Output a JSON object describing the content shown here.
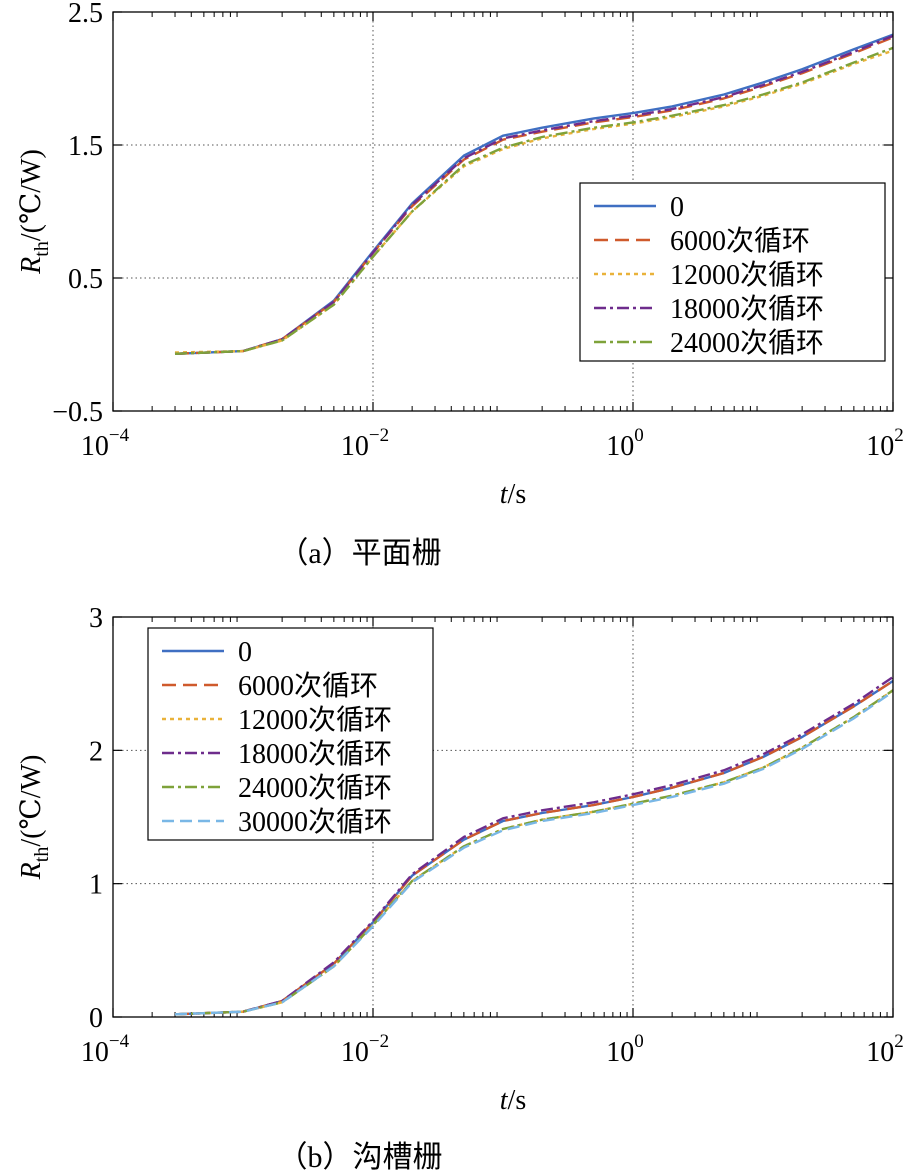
{
  "captions": [
    "（a）平面栅",
    "（b）沟槽栅"
  ],
  "colors": {
    "s0": "#3f6fc2",
    "s6000": "#cf5a2c",
    "s12000": "#e9b23a",
    "s18000": "#6e2c8c",
    "s24000": "#7ea23a",
    "s30000": "#79b7e6"
  },
  "chart_data": [
    {
      "type": "line",
      "x_scale": "log",
      "xlim": [
        0.0001,
        100
      ],
      "ylim": [
        -0.5,
        2.5
      ],
      "grid": true,
      "legend_position": "center-right",
      "xlabel_var": "t",
      "xlabel_unit": "/s",
      "ylabel_var": "R",
      "ylabel_sub": "th",
      "ylabel_unit": "/(℃/W)",
      "x_ticks": [
        "10",
        "10",
        "10",
        "10"
      ],
      "x_tick_exps": [
        "−4",
        "−2",
        "0",
        "2"
      ],
      "y_ticks": [
        "2.5",
        "1.5",
        "0.5",
        "−0.5"
      ],
      "x": [
        0.0003,
        0.001,
        0.002,
        0.005,
        0.01,
        0.02,
        0.05,
        0.1,
        0.2,
        0.5,
        1,
        2,
        5,
        10,
        20,
        50,
        100
      ],
      "series": [
        {
          "name": "0",
          "color_key": "s0",
          "dash": "none",
          "values": [
            -0.07,
            -0.05,
            0.04,
            0.33,
            0.7,
            1.06,
            1.42,
            1.57,
            1.63,
            1.7,
            1.74,
            1.79,
            1.88,
            1.97,
            2.07,
            2.22,
            2.33
          ]
        },
        {
          "name": "6000次循环",
          "color_key": "s6000",
          "dash": "14,7",
          "values": [
            -0.07,
            -0.05,
            0.04,
            0.32,
            0.69,
            1.04,
            1.39,
            1.54,
            1.6,
            1.67,
            1.71,
            1.76,
            1.85,
            1.94,
            2.04,
            2.19,
            2.31
          ]
        },
        {
          "name": "12000次循环",
          "color_key": "s12000",
          "dash": "4,4",
          "values": [
            -0.06,
            -0.05,
            0.03,
            0.3,
            0.66,
            1.0,
            1.34,
            1.47,
            1.55,
            1.62,
            1.66,
            1.71,
            1.79,
            1.87,
            1.96,
            2.11,
            2.21
          ]
        },
        {
          "name": "18000次循环",
          "color_key": "s18000",
          "dash": "12,4,3,4",
          "values": [
            -0.07,
            -0.05,
            0.04,
            0.32,
            0.69,
            1.05,
            1.4,
            1.55,
            1.61,
            1.68,
            1.72,
            1.77,
            1.86,
            1.95,
            2.05,
            2.2,
            2.32
          ]
        },
        {
          "name": "24000次循环",
          "color_key": "s24000",
          "dash": "12,4,3,4",
          "values": [
            -0.07,
            -0.05,
            0.03,
            0.3,
            0.66,
            1.0,
            1.35,
            1.48,
            1.56,
            1.63,
            1.67,
            1.72,
            1.8,
            1.88,
            1.97,
            2.12,
            2.23
          ]
        }
      ]
    },
    {
      "type": "line",
      "x_scale": "log",
      "xlim": [
        0.0001,
        100
      ],
      "ylim": [
        0,
        3
      ],
      "grid": true,
      "legend_position": "top-left",
      "xlabel_var": "t",
      "xlabel_unit": "/s",
      "ylabel_var": "R",
      "ylabel_sub": "th",
      "ylabel_unit": "/(℃/W)",
      "x_ticks": [
        "10",
        "10",
        "10",
        "10"
      ],
      "x_tick_exps": [
        "−4",
        "−2",
        "0",
        "2"
      ],
      "y_ticks": [
        "3",
        "2",
        "1",
        "0"
      ],
      "x": [
        0.0003,
        0.001,
        0.002,
        0.005,
        0.01,
        0.02,
        0.05,
        0.1,
        0.2,
        0.5,
        1,
        2,
        5,
        10,
        20,
        50,
        100
      ],
      "series": [
        {
          "name": "0",
          "color_key": "s0",
          "dash": "none",
          "values": [
            0.02,
            0.04,
            0.12,
            0.4,
            0.71,
            1.06,
            1.33,
            1.47,
            1.53,
            1.59,
            1.65,
            1.72,
            1.83,
            1.95,
            2.1,
            2.33,
            2.52
          ]
        },
        {
          "name": "6000次循环",
          "color_key": "s6000",
          "dash": "14,7",
          "values": [
            0.02,
            0.04,
            0.12,
            0.4,
            0.71,
            1.06,
            1.33,
            1.47,
            1.53,
            1.59,
            1.65,
            1.72,
            1.83,
            1.95,
            2.1,
            2.33,
            2.52
          ]
        },
        {
          "name": "12000次循环",
          "color_key": "s12000",
          "dash": "4,4",
          "values": [
            0.02,
            0.04,
            0.11,
            0.38,
            0.69,
            1.02,
            1.28,
            1.41,
            1.48,
            1.54,
            1.6,
            1.66,
            1.76,
            1.87,
            2.02,
            2.25,
            2.45
          ]
        },
        {
          "name": "18000次循环",
          "color_key": "s18000",
          "dash": "12,4,3,4",
          "values": [
            0.02,
            0.04,
            0.12,
            0.41,
            0.72,
            1.07,
            1.35,
            1.49,
            1.55,
            1.61,
            1.67,
            1.74,
            1.85,
            1.97,
            2.12,
            2.35,
            2.55
          ]
        },
        {
          "name": "24000次循环",
          "color_key": "s24000",
          "dash": "12,4,3,4",
          "values": [
            0.02,
            0.04,
            0.11,
            0.38,
            0.69,
            1.02,
            1.28,
            1.41,
            1.48,
            1.54,
            1.6,
            1.66,
            1.76,
            1.87,
            2.02,
            2.25,
            2.45
          ]
        },
        {
          "name": "30000次循环",
          "color_key": "s30000",
          "dash": "12,6",
          "values": [
            0.02,
            0.04,
            0.11,
            0.38,
            0.68,
            1.01,
            1.27,
            1.4,
            1.47,
            1.53,
            1.59,
            1.65,
            1.75,
            1.86,
            2.01,
            2.24,
            2.44
          ]
        }
      ]
    }
  ]
}
